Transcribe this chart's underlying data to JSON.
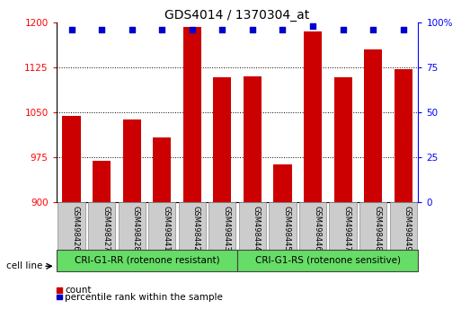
{
  "title": "GDS4014 / 1370304_at",
  "samples": [
    "GSM498426",
    "GSM498427",
    "GSM498428",
    "GSM498441",
    "GSM498442",
    "GSM498443",
    "GSM498444",
    "GSM498445",
    "GSM498446",
    "GSM498447",
    "GSM498448",
    "GSM498449"
  ],
  "counts": [
    1044,
    968,
    1038,
    1008,
    1192,
    1108,
    1110,
    962,
    1185,
    1108,
    1155,
    1122
  ],
  "percentile_ranks": [
    96,
    96,
    96,
    96,
    96,
    96,
    96,
    96,
    98,
    96,
    96,
    96
  ],
  "bar_color": "#cc0000",
  "dot_color": "#0000cc",
  "ylim_left": [
    900,
    1200
  ],
  "ylim_right": [
    0,
    100
  ],
  "yticks_left": [
    900,
    975,
    1050,
    1125,
    1200
  ],
  "yticks_right": [
    0,
    25,
    50,
    75,
    100
  ],
  "group1_label": "CRI-G1-RR (rotenone resistant)",
  "group2_label": "CRI-G1-RS (rotenone sensitive)",
  "group1_count": 6,
  "group2_count": 6,
  "cell_line_label": "cell line",
  "legend_count_label": "count",
  "legend_percentile_label": "percentile rank within the sample",
  "group_bg_color": "#66dd66",
  "tick_bg_color": "#cccccc",
  "title_fontsize": 10,
  "tick_fontsize": 7.5,
  "bar_width": 0.6
}
